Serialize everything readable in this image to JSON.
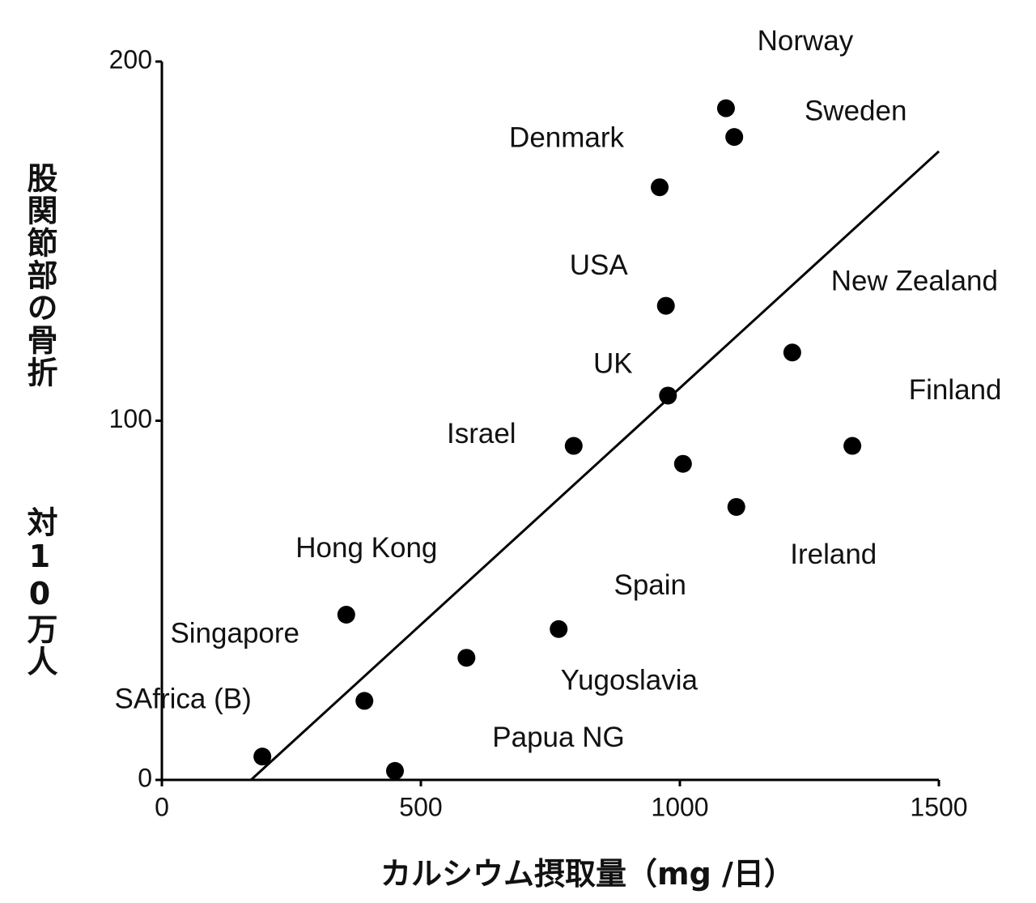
{
  "chart_data": {
    "type": "scatter",
    "ylabel": [
      "股関節部の骨折",
      "対10万人"
    ],
    "xlabel": "カルシウム摂取量（mg /日）",
    "labels": [
      "Norway",
      "Sweden",
      "Denmark",
      "USA",
      "New Zealand",
      "UK",
      "Finland",
      "Israel",
      null,
      "Ireland",
      "Spain",
      "Hong Kong",
      "Singapore",
      "SAfrica (B)",
      "Yugoslavia",
      "Papua NG"
    ],
    "x": [
      1089,
      1105,
      961,
      973,
      1217,
      977,
      1333,
      795,
      1006,
      1109,
      766,
      356,
      391,
      194,
      588,
      450
    ],
    "y": [
      187,
      179,
      165,
      132,
      119,
      107,
      93,
      93,
      88,
      76,
      42,
      46,
      22,
      6.5,
      34,
      2.5
    ],
    "color": "#000000",
    "trendline": {
      "x": [
        172,
        1500
      ],
      "y": [
        0,
        175
      ]
    },
    "xlim": [
      0,
      1500
    ],
    "xticks": [
      0,
      500,
      1000,
      1500
    ],
    "ylim": [
      0,
      200
    ],
    "yticks": [
      0,
      100,
      200
    ],
    "grid": false
  }
}
